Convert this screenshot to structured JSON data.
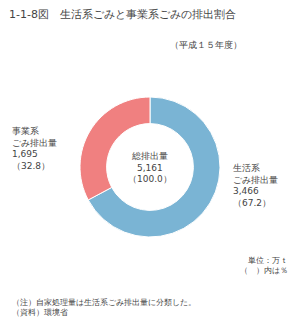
{
  "chart_data": {
    "type": "pie",
    "title": "1-1-8図　生活系ごみと事業系ごみの排出割合",
    "subtitle": "（平成１５年度）",
    "values": [
      67.2,
      32.8
    ],
    "colors": [
      "#7ab4d4",
      "#f08080"
    ],
    "data_labels": false,
    "annotations": [
      [
        "総排出量",
        "5,161",
        "（100.0）"
      ],
      [
        "生活系",
        "ごみ排出量",
        "3,466",
        "（67.2）"
      ],
      [
        "事業系",
        "ごみ排出量",
        "1,695",
        "（32.8）"
      ],
      [
        "単位：万ｔ",
        "（　）内は％"
      ],
      [
        "（注）自家処理量は生活系ごみ排出量に分類した。",
        "（資料）環境省"
      ]
    ]
  }
}
